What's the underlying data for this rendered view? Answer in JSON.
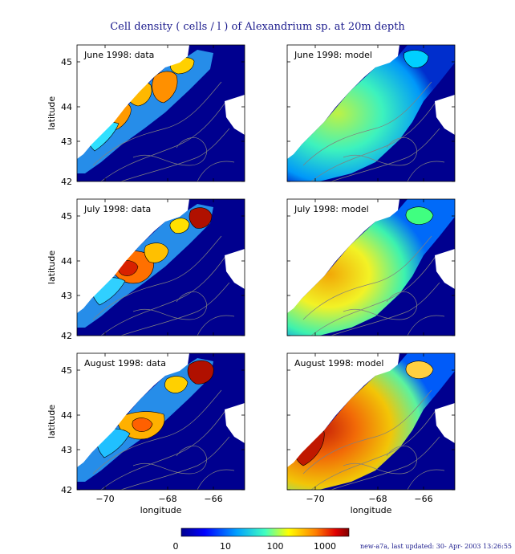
{
  "figure": {
    "title": "Cell density ( cells / l ) of Alexandrium sp. at 20m depth",
    "footer": "new-a7a, last updated: 30- Apr- 2003 13:26:55"
  },
  "axes": {
    "xlabel": "longitude",
    "ylabel": "latitude",
    "x_ticks": [
      "−70",
      "−68",
      "−66"
    ],
    "y_ticks": [
      "45",
      "44",
      "43",
      "42"
    ]
  },
  "panels": [
    {
      "id": "june-data",
      "label": "June 1998: data",
      "kind": "data",
      "month": "June"
    },
    {
      "id": "june-model",
      "label": "June 1998: model",
      "kind": "model",
      "month": "June"
    },
    {
      "id": "july-data",
      "label": "July 1998: data",
      "kind": "data",
      "month": "July"
    },
    {
      "id": "july-model",
      "label": "July 1998: model",
      "kind": "model",
      "month": "July"
    },
    {
      "id": "august-data",
      "label": "August 1998: data",
      "kind": "data",
      "month": "August"
    },
    {
      "id": "august-model",
      "label": "August 1998: model",
      "kind": "model",
      "month": "August"
    }
  ],
  "colorbar": {
    "ticks": [
      "0",
      "10",
      "100",
      "1000"
    ],
    "colors": [
      "#00008f",
      "#0050ff",
      "#00d0ff",
      "#60ff9f",
      "#ffff00",
      "#ff9000",
      "#e02000",
      "#800000"
    ]
  },
  "land_color": "#ffffff",
  "ocean_background_color": "#00008f",
  "contour_color": "#808080"
}
